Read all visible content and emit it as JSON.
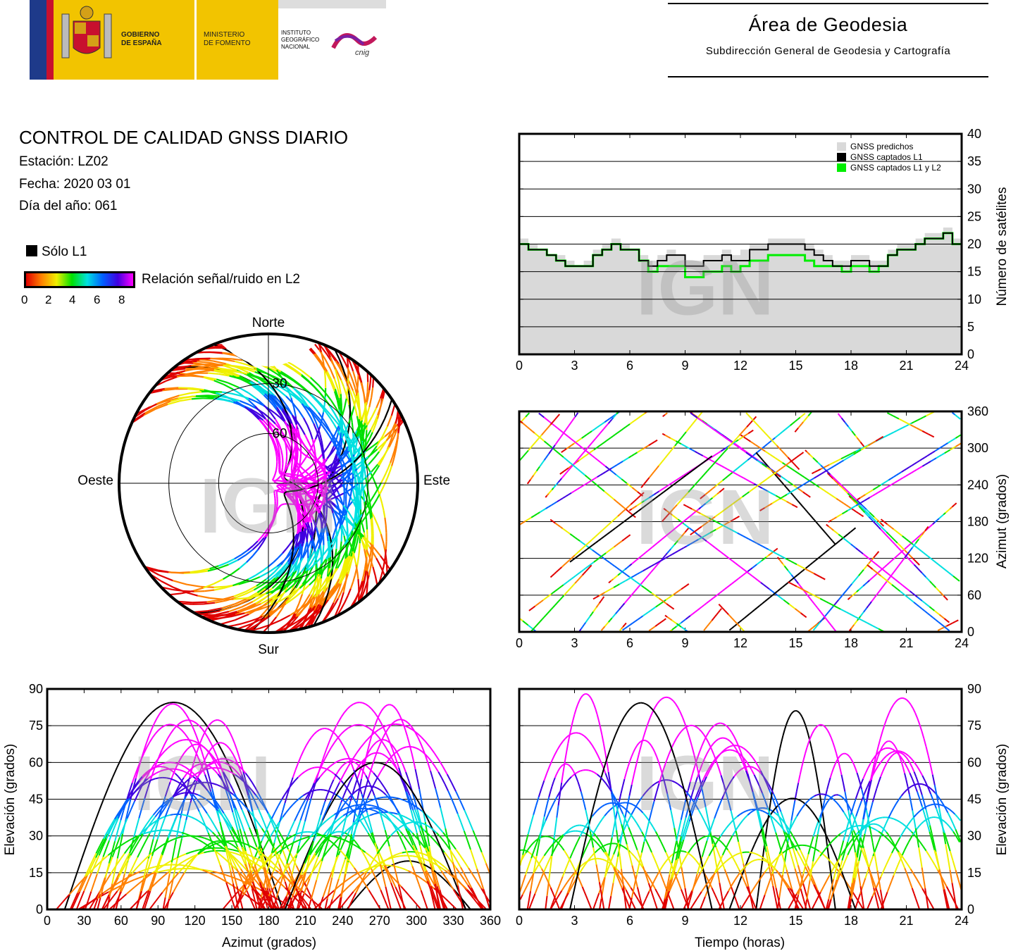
{
  "header": {
    "gobierno": "GOBIERNO\nDE ESPAÑA",
    "ministerio": "MINISTERIO\nDE FOMENTO",
    "instituto": "INSTITUTO\nGEOGRÁFICO\nNACIONAL",
    "cnig": "cnig",
    "area_title": "Área de Geodesia",
    "area_subtitle": "Subdirección General de Geodesia y Cartografía"
  },
  "report": {
    "title": "CONTROL DE CALIDAD GNSS DIARIO",
    "station": "Estación: LZ02",
    "date": "Fecha: 2020 03 01",
    "doy": "Día del año: 061"
  },
  "legend": {
    "solo_l1": "Sólo L1",
    "snr_label": "Relación señal/ruido en L2",
    "snr_ticks": [
      "0",
      "2",
      "4",
      "6",
      "8"
    ]
  },
  "watermark": "IGN",
  "colors": {
    "predicted": "#d9d9d9",
    "l1": "#000000",
    "l1l2": "#00ee00",
    "snr_scale": [
      "#e00000",
      "#ff8000",
      "#f0f000",
      "#00e000",
      "#00e0e0",
      "#0060ff",
      "#4000e0",
      "#ff00ff"
    ]
  },
  "chart_data": [
    {
      "type": "area",
      "id": "satellites",
      "xlabel": "",
      "ylabel": "Número de satélites",
      "xlim": [
        0,
        24
      ],
      "ylim": [
        0,
        40
      ],
      "xticks": [
        "0",
        "3",
        "6",
        "9",
        "12",
        "15",
        "18",
        "21",
        "24"
      ],
      "yticks": [
        "0",
        "5",
        "10",
        "15",
        "20",
        "25",
        "30",
        "35",
        "40"
      ],
      "grid": true,
      "legend_position": "top-right",
      "x": [
        0,
        0.5,
        1,
        1.5,
        2,
        2.5,
        3,
        3.5,
        4,
        4.5,
        5,
        5.5,
        6,
        6.5,
        7,
        7.5,
        8,
        8.5,
        9,
        9.5,
        10,
        10.5,
        11,
        11.5,
        12,
        12.5,
        13,
        13.5,
        14,
        14.5,
        15,
        15.5,
        16,
        16.5,
        17,
        17.5,
        18,
        18.5,
        19,
        19.5,
        20,
        20.5,
        21,
        21.5,
        22,
        22.5,
        23,
        23.5,
        24
      ],
      "series": [
        {
          "name": "GNSS predichos",
          "values": [
            21,
            20,
            19,
            18,
            18,
            17,
            16,
            17,
            19,
            20,
            21,
            20,
            19,
            18,
            17,
            18,
            19,
            18,
            17,
            17,
            18,
            18,
            19,
            18,
            19,
            20,
            20,
            21,
            21,
            21,
            21,
            20,
            19,
            18,
            17,
            17,
            18,
            18,
            17,
            17,
            19,
            20,
            20,
            21,
            22,
            22,
            23,
            21,
            20
          ]
        },
        {
          "name": "GNSS captados L1",
          "values": [
            20,
            19,
            19,
            18,
            17,
            16,
            16,
            16,
            18,
            19,
            20,
            19,
            19,
            17,
            16,
            17,
            18,
            18,
            16,
            16,
            17,
            17,
            18,
            17,
            17,
            19,
            19,
            20,
            20,
            20,
            20,
            19,
            18,
            17,
            16,
            16,
            17,
            17,
            16,
            16,
            18,
            19,
            19,
            20,
            21,
            21,
            22,
            20,
            19
          ]
        },
        {
          "name": "GNSS captados L1 y L2",
          "values": [
            20,
            19,
            19,
            18,
            17,
            16,
            16,
            16,
            18,
            19,
            20,
            19,
            19,
            17,
            15,
            16,
            16,
            16,
            14,
            14,
            15,
            15,
            16,
            15,
            16,
            17,
            17,
            18,
            18,
            18,
            18,
            17,
            16,
            16,
            16,
            15,
            16,
            16,
            15,
            16,
            18,
            19,
            19,
            20,
            21,
            21,
            22,
            20,
            19
          ]
        }
      ]
    },
    {
      "type": "polar",
      "id": "skyplot",
      "labels": {
        "n": "Norte",
        "s": "Sur",
        "e": "Este",
        "w": "Oeste"
      },
      "rings": [
        "30",
        "60"
      ]
    },
    {
      "type": "scatter",
      "id": "azimuth-time",
      "xlabel": "",
      "ylabel": "Azimut (grados)",
      "xlim": [
        0,
        24
      ],
      "ylim": [
        0,
        360
      ],
      "xticks": [
        "0",
        "3",
        "6",
        "9",
        "12",
        "15",
        "18",
        "21",
        "24"
      ],
      "yticks": [
        "0",
        "60",
        "120",
        "180",
        "240",
        "300",
        "360"
      ],
      "grid": true
    },
    {
      "type": "scatter",
      "id": "elevation-azimuth",
      "xlabel": "Azimut (grados)",
      "ylabel": "Elevación (grados)",
      "xlim": [
        0,
        360
      ],
      "ylim": [
        0,
        90
      ],
      "xticks": [
        "0",
        "30",
        "60",
        "90",
        "120",
        "150",
        "180",
        "210",
        "240",
        "270",
        "300",
        "330",
        "360"
      ],
      "yticks": [
        "0",
        "15",
        "30",
        "45",
        "60",
        "75",
        "90"
      ],
      "grid": true
    },
    {
      "type": "scatter",
      "id": "elevation-time",
      "xlabel": "Tiempo (horas)",
      "ylabel": "Elevación (grados)",
      "xlim": [
        0,
        24
      ],
      "ylim": [
        0,
        90
      ],
      "xticks": [
        "0",
        "3",
        "6",
        "9",
        "12",
        "15",
        "18",
        "21",
        "24"
      ],
      "yticks": [
        "0",
        "15",
        "30",
        "45",
        "60",
        "75",
        "90"
      ],
      "grid": true
    }
  ]
}
